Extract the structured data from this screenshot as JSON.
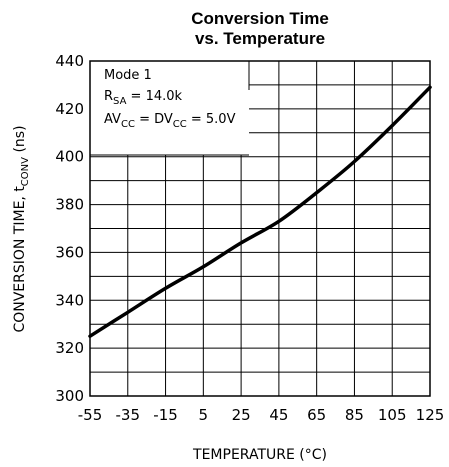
{
  "chart_data": {
    "type": "line",
    "title_line1": "Conversion Time",
    "title_line2": "vs. Temperature",
    "xlabel": "TEMPERATURE (°C)",
    "ylabel_main": "CONVERSION TIME, t",
    "ylabel_sub": "CONV",
    "ylabel_unit": " (ns)",
    "xlim": [
      -55,
      125
    ],
    "ylim": [
      300,
      440
    ],
    "x_ticks": [
      -55,
      -35,
      -15,
      5,
      25,
      45,
      65,
      85,
      105,
      125
    ],
    "y_ticks": [
      300,
      320,
      340,
      360,
      380,
      400,
      420,
      440
    ],
    "grid": true,
    "legend": {
      "position": "top-left",
      "line1": "Mode 1",
      "line2_main": "R",
      "line2_sub": "SA",
      "line2_rest": " = 14.0k",
      "line3_a": "AV",
      "line3_a_sub": "CC",
      "line3_b": " = DV",
      "line3_b_sub": "CC",
      "line3_c": " = 5.0V"
    },
    "series": [
      {
        "x": [
          -55,
          -35,
          -15,
          5,
          25,
          45,
          65,
          85,
          105,
          125
        ],
        "y": [
          325,
          335,
          345,
          354,
          364,
          373,
          385,
          398,
          413,
          429
        ]
      }
    ]
  }
}
